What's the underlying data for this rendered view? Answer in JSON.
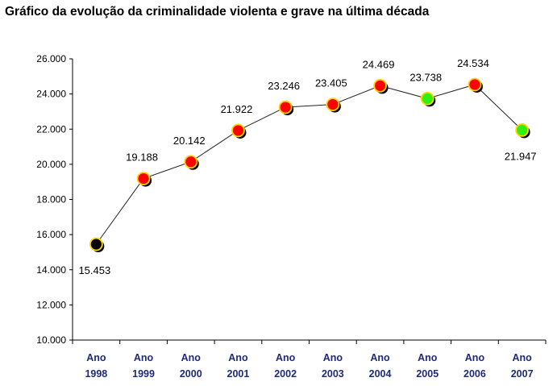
{
  "chart_data": {
    "type": "line",
    "title": "Gráfico da evolução da criminalidade violenta e grave na última década",
    "xlabel": "",
    "ylabel": "",
    "categories": [
      [
        "Ano",
        "1998"
      ],
      [
        "Ano",
        "1999"
      ],
      [
        "Ano",
        "2000"
      ],
      [
        "Ano",
        "2001"
      ],
      [
        "Ano",
        "2002"
      ],
      [
        "Ano",
        "2003"
      ],
      [
        "Ano",
        "2004"
      ],
      [
        "Ano",
        "2005"
      ],
      [
        "Ano",
        "2006"
      ],
      [
        "Ano",
        "2007"
      ]
    ],
    "values": [
      15453,
      19188,
      20142,
      21922,
      23246,
      23405,
      24469,
      23738,
      24534,
      21947
    ],
    "data_labels": [
      "15.453",
      "19.188",
      "20.142",
      "21.922",
      "23.246",
      "23.405",
      "24.469",
      "23.738",
      "24.534",
      "21.947"
    ],
    "point_colors": [
      "#000000",
      "#ff0000",
      "#ff0000",
      "#ff0000",
      "#ff0000",
      "#ff0000",
      "#ff0000",
      "#33ee11",
      "#ff0000",
      "#33ee11"
    ],
    "ylim": [
      10000,
      26000
    ],
    "yticks": [
      10000,
      12000,
      14000,
      16000,
      18000,
      20000,
      22000,
      24000,
      26000
    ],
    "ytick_labels": [
      "10.000",
      "12.000",
      "14.000",
      "16.000",
      "18.000",
      "20.000",
      "22.000",
      "24.000",
      "26.000"
    ],
    "grid": false,
    "legend": "none"
  }
}
